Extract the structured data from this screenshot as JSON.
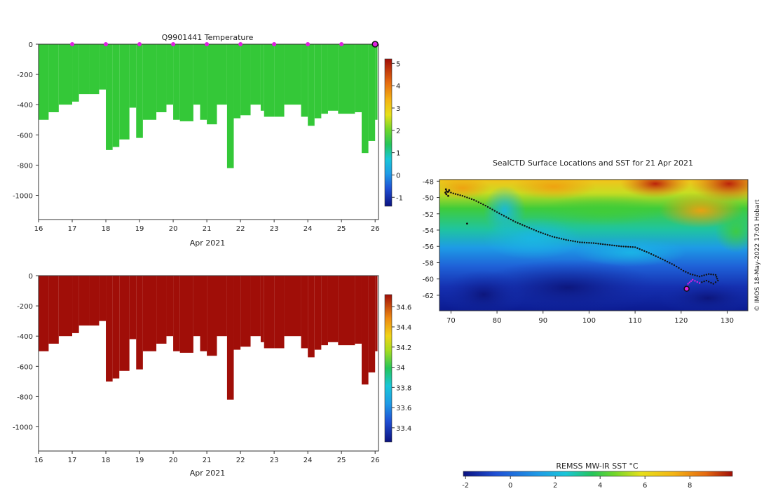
{
  "chart_data": [
    {
      "type": "heatmap",
      "title": "Q9901441  Temperature",
      "xlabel": "Apr 2021",
      "ylabel": "",
      "x_ticks": [
        "16",
        "17",
        "18",
        "19",
        "20",
        "21",
        "22",
        "23",
        "24",
        "25",
        "26"
      ],
      "x_range": [
        16,
        26.1
      ],
      "y_ticks": [
        "0",
        "-200",
        "-400",
        "-600",
        "-800",
        "-1000"
      ],
      "y_range": [
        -1160,
        0
      ],
      "colorbar": {
        "ticks": [
          "-1",
          "0",
          "1",
          "2",
          "3",
          "4",
          "5"
        ],
        "range": [
          -1.4,
          5.2
        ]
      },
      "profile_markers_x": [
        17,
        18,
        19,
        20,
        21,
        22,
        23,
        24,
        25
      ],
      "latest_profile_x": 26,
      "profile_depths": [
        [
          16.0,
          -500
        ],
        [
          16.3,
          -450
        ],
        [
          16.6,
          -400
        ],
        [
          17.0,
          -380
        ],
        [
          17.2,
          -330
        ],
        [
          17.5,
          -330
        ],
        [
          17.8,
          -300
        ],
        [
          18.0,
          -700
        ],
        [
          18.2,
          -680
        ],
        [
          18.4,
          -630
        ],
        [
          18.7,
          -420
        ],
        [
          18.9,
          -620
        ],
        [
          19.1,
          -500
        ],
        [
          19.5,
          -450
        ],
        [
          19.8,
          -400
        ],
        [
          20.0,
          -500
        ],
        [
          20.2,
          -510
        ],
        [
          20.6,
          -400
        ],
        [
          20.8,
          -500
        ],
        [
          21.0,
          -530
        ],
        [
          21.3,
          -400
        ],
        [
          21.6,
          -820
        ],
        [
          21.8,
          -490
        ],
        [
          22.0,
          -470
        ],
        [
          22.3,
          -400
        ],
        [
          22.6,
          -440
        ],
        [
          22.7,
          -480
        ],
        [
          23.0,
          -480
        ],
        [
          23.3,
          -400
        ],
        [
          23.8,
          -480
        ],
        [
          24.0,
          -540
        ],
        [
          24.2,
          -490
        ],
        [
          24.4,
          -460
        ],
        [
          24.6,
          -440
        ],
        [
          24.9,
          -460
        ],
        [
          25.4,
          -450
        ],
        [
          25.6,
          -720
        ],
        [
          25.8,
          -640
        ],
        [
          26.0,
          -500
        ]
      ]
    },
    {
      "type": "heatmap",
      "title": "",
      "xlabel": "Apr 2021",
      "ylabel": "",
      "x_ticks": [
        "16",
        "17",
        "18",
        "19",
        "20",
        "21",
        "22",
        "23",
        "24",
        "25",
        "26"
      ],
      "x_range": [
        16,
        26.1
      ],
      "y_ticks": [
        "0",
        "-200",
        "-400",
        "-600",
        "-800",
        "-1000"
      ],
      "y_range": [
        -1160,
        0
      ],
      "colorbar": {
        "ticks": [
          "33.4",
          "33.6",
          "33.8",
          "34",
          "34.2",
          "34.4",
          "34.6"
        ],
        "range": [
          33.26,
          34.72
        ]
      }
    },
    {
      "type": "heatmap",
      "title": "SealCTD Surface Locations and SST for 21 Apr 2021",
      "xlabel": "",
      "ylabel": "",
      "x_ticks": [
        "70",
        "80",
        "90",
        "100",
        "110",
        "120",
        "130"
      ],
      "x_range": [
        67.5,
        134.5
      ],
      "y_ticks": [
        "-48",
        "-50",
        "-52",
        "-54",
        "-56",
        "-58",
        "-60",
        "-62"
      ],
      "y_range": [
        -63.9,
        -47.8
      ],
      "track_lon_lat": [
        [
          69.0,
          -49.2
        ],
        [
          70.5,
          -49.5
        ],
        [
          72.5,
          -49.8
        ],
        [
          75.0,
          -50.3
        ],
        [
          77.5,
          -51.0
        ],
        [
          80.0,
          -51.8
        ],
        [
          82.0,
          -52.4
        ],
        [
          84.0,
          -53.0
        ],
        [
          86.5,
          -53.6
        ],
        [
          89.0,
          -54.2
        ],
        [
          92.0,
          -54.8
        ],
        [
          95.0,
          -55.2
        ],
        [
          98.0,
          -55.5
        ],
        [
          101.0,
          -55.6
        ],
        [
          104.0,
          -55.8
        ],
        [
          107.0,
          -56.0
        ],
        [
          110.0,
          -56.1
        ],
        [
          113.0,
          -56.8
        ],
        [
          116.0,
          -57.6
        ],
        [
          118.5,
          -58.3
        ],
        [
          120.5,
          -59.0
        ],
        [
          122.0,
          -59.4
        ],
        [
          124.0,
          -59.7
        ],
        [
          126.0,
          -59.4
        ],
        [
          127.5,
          -59.5
        ],
        [
          128.0,
          -60.2
        ],
        [
          127.0,
          -60.6
        ],
        [
          125.5,
          -60.2
        ],
        [
          124.0,
          -60.5
        ],
        [
          122.5,
          -60.1
        ],
        [
          121.5,
          -60.6
        ],
        [
          121.2,
          -61.2
        ]
      ],
      "isolated_point": [
        73.5,
        -53.2
      ],
      "current_position": [
        121.2,
        -61.2
      ],
      "colorbar_title": "REMSS MW-IR SST °C",
      "colorbar_ticks": [
        "-2",
        "0",
        "2",
        "4",
        "6",
        "8"
      ],
      "colorbar_range": [
        -2.1,
        9.9
      ]
    }
  ],
  "credit": "© IMOS 18-May-2022 17:01 Hobart"
}
